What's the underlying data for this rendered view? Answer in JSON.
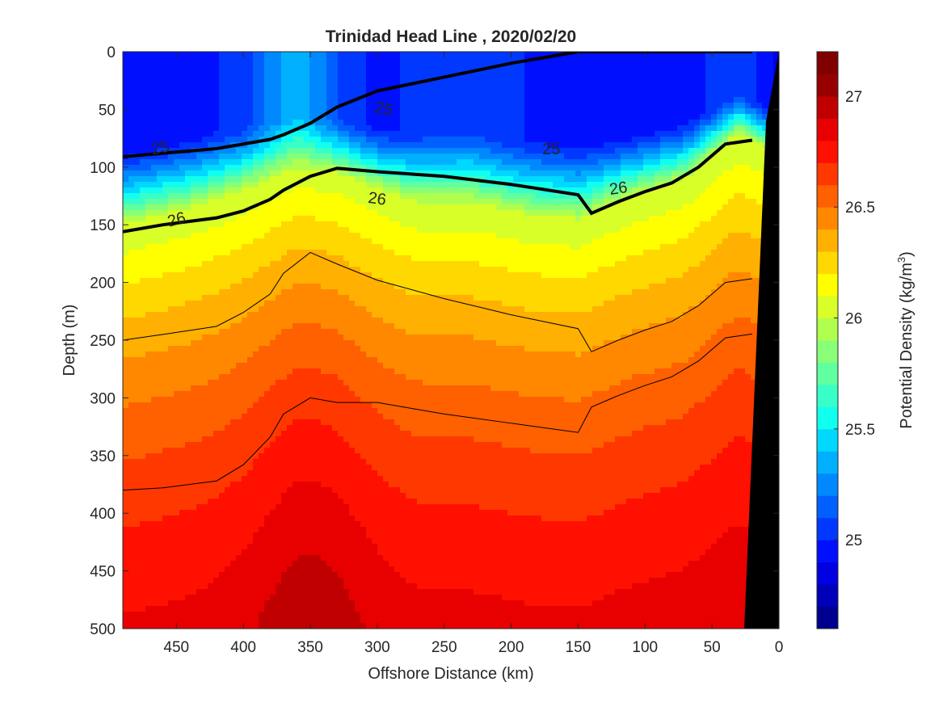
{
  "chart_data": {
    "type": "contour",
    "title": "Trinidad Head Line , 2020/02/20",
    "xlabel": "Offshore Distance (km)",
    "ylabel": "Depth (m)",
    "colorbar_label": "Potential Density (kg/m",
    "colorbar_label_superscript": "3",
    "colorbar_label_suffix": ")",
    "x_reversed": true,
    "xlim": [
      490,
      0
    ],
    "ylim": [
      0,
      500
    ],
    "y_reversed": true,
    "x_ticks": [
      450,
      400,
      350,
      300,
      250,
      200,
      150,
      100,
      50,
      0
    ],
    "y_ticks": [
      0,
      50,
      100,
      150,
      200,
      250,
      300,
      350,
      400,
      450,
      500
    ],
    "colorbar_range": [
      24.6,
      27.2
    ],
    "colorbar_ticks": [
      25,
      25.5,
      26,
      26.5,
      27
    ],
    "colorbar_levels": [
      24.6,
      24.7,
      24.8,
      24.9,
      25.0,
      25.1,
      25.2,
      25.3,
      25.4,
      25.5,
      25.6,
      25.7,
      25.8,
      25.9,
      26.0,
      26.1,
      26.2,
      26.3,
      26.4,
      26.5,
      26.6,
      26.7,
      26.8,
      26.9,
      27.0,
      27.1,
      27.2
    ],
    "colormap": [
      "#00008f",
      "#0000b8",
      "#0000e0",
      "#0010ff",
      "#0038ff",
      "#0060ff",
      "#0088ff",
      "#00b0ff",
      "#00d8ff",
      "#10ffef",
      "#38ffc7",
      "#60ff9f",
      "#88ff77",
      "#b0ff4f",
      "#d8ff27",
      "#ffff00",
      "#ffd800",
      "#ffb000",
      "#ff8800",
      "#ff6000",
      "#ff3800",
      "#ff1000",
      "#e80000",
      "#c00000",
      "#980000",
      "#800000"
    ],
    "contour_labels": [
      {
        "text": "25",
        "x": 462,
        "y": 83,
        "angle": -10
      },
      {
        "text": "25",
        "x": 295,
        "y": 49,
        "angle": 12
      },
      {
        "text": "25",
        "x": 170,
        "y": 84,
        "angle": 0
      },
      {
        "text": "26",
        "x": 450,
        "y": 145,
        "angle": -15
      },
      {
        "text": "26",
        "x": 300,
        "y": 127,
        "angle": 8
      },
      {
        "text": "26",
        "x": 120,
        "y": 118,
        "angle": -8
      }
    ],
    "isopycnals": [
      {
        "level": 25.0,
        "bold": true,
        "depths": [
          91,
          88,
          84,
          80,
          76,
          72,
          62,
          48,
          34,
          22,
          10,
          0
        ]
      },
      {
        "level": 26.0,
        "bold": true,
        "depths": [
          156,
          150,
          144,
          138,
          128,
          120,
          108,
          101,
          104,
          108,
          115,
          124
        ]
      },
      {
        "level": 26.5,
        "bold": false,
        "depths": [
          250,
          245,
          238,
          226,
          210,
          192,
          174,
          184,
          198,
          214,
          228,
          240
        ]
      },
      {
        "level": 26.7,
        "bold": false,
        "depths": [
          380,
          378,
          372,
          358,
          334,
          314,
          300,
          304,
          304,
          314,
          322,
          330
        ]
      }
    ]
  }
}
